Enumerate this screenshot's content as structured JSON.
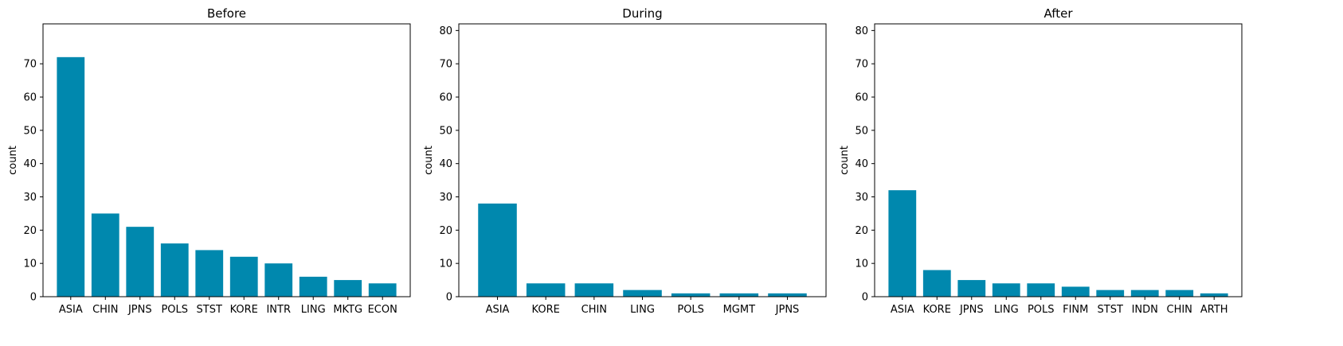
{
  "colors": {
    "bar": "#0088ae",
    "axis": "#000000",
    "background": "#ffffff"
  },
  "chart_data": [
    {
      "type": "bar",
      "title": "Before",
      "ylabel": "count",
      "xlabel": "",
      "ylim": [
        0,
        82
      ],
      "yticks": [
        0,
        10,
        20,
        30,
        40,
        50,
        60,
        70
      ],
      "categories": [
        "ASIA",
        "CHIN",
        "JPNS",
        "POLS",
        "STST",
        "KORE",
        "INTR",
        "LING",
        "MKTG",
        "ECON"
      ],
      "values": [
        72,
        25,
        21,
        16,
        14,
        12,
        10,
        6,
        5,
        4
      ],
      "grid": false
    },
    {
      "type": "bar",
      "title": "During",
      "ylabel": "count",
      "xlabel": "",
      "ylim": [
        0,
        82
      ],
      "yticks": [
        0,
        10,
        20,
        30,
        40,
        50,
        60,
        70,
        80
      ],
      "categories": [
        "ASIA",
        "KORE",
        "CHIN",
        "LING",
        "POLS",
        "MGMT",
        "JPNS"
      ],
      "values": [
        28,
        4,
        4,
        2,
        1,
        1,
        1
      ],
      "grid": false
    },
    {
      "type": "bar",
      "title": "After",
      "ylabel": "count",
      "xlabel": "",
      "ylim": [
        0,
        82
      ],
      "yticks": [
        0,
        10,
        20,
        30,
        40,
        50,
        60,
        70,
        80
      ],
      "categories": [
        "ASIA",
        "KORE",
        "JPNS",
        "LING",
        "POLS",
        "FINM",
        "STST",
        "INDN",
        "CHIN",
        "ARTH"
      ],
      "values": [
        32,
        8,
        5,
        4,
        4,
        3,
        2,
        2,
        2,
        1
      ],
      "grid": false
    }
  ]
}
